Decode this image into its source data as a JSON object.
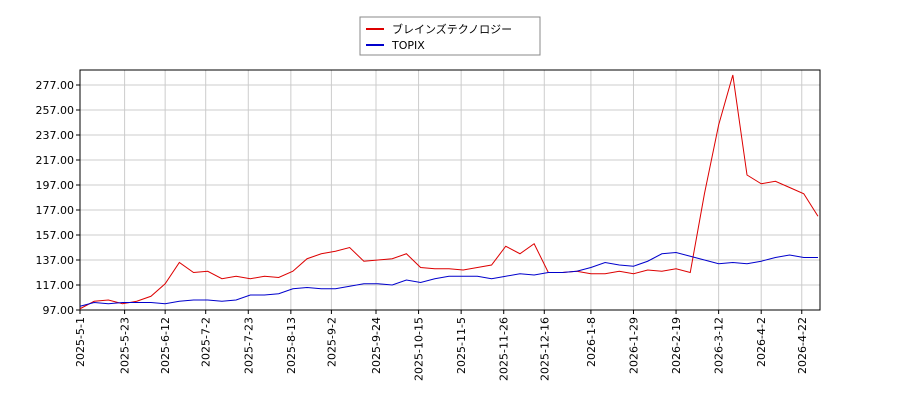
{
  "chart_data": {
    "type": "line",
    "x": [
      "2025-05-01",
      "2025-05-08",
      "2025-05-15",
      "2025-05-22",
      "2025-05-29",
      "2025-06-05",
      "2025-06-12",
      "2025-06-19",
      "2025-06-26",
      "2025-07-03",
      "2025-07-10",
      "2025-07-17",
      "2025-07-24",
      "2025-07-31",
      "2025-08-07",
      "2025-08-14",
      "2025-08-21",
      "2025-08-28",
      "2025-09-04",
      "2025-09-11",
      "2025-09-18",
      "2025-09-25",
      "2025-10-02",
      "2025-10-09",
      "2025-10-16",
      "2025-10-23",
      "2025-10-30",
      "2025-11-06",
      "2025-11-13",
      "2025-11-20",
      "2025-11-27",
      "2025-12-04",
      "2025-12-11",
      "2025-12-18",
      "2025-12-25",
      "2026-01-01",
      "2026-01-08",
      "2026-01-15",
      "2026-01-22",
      "2026-01-29",
      "2026-02-05",
      "2026-02-12",
      "2026-02-19",
      "2026-02-26",
      "2026-03-05",
      "2026-03-12",
      "2026-03-19",
      "2026-03-26",
      "2026-04-02",
      "2026-04-09",
      "2026-04-16",
      "2026-04-23",
      "2026-04-30"
    ],
    "series": [
      {
        "name": "ブレインズテクノロジー",
        "color": "#dd0000",
        "values": [
          98,
          104,
          105,
          102,
          104,
          108,
          118,
          135,
          127,
          128,
          122,
          124,
          122,
          124,
          123,
          128,
          138,
          142,
          144,
          147,
          136,
          137,
          138,
          142,
          131,
          130,
          130,
          129,
          131,
          133,
          148,
          142,
          150,
          127,
          127,
          128,
          126,
          126,
          128,
          126,
          129,
          128,
          130,
          127,
          190,
          245,
          285,
          205,
          198,
          200,
          195,
          190,
          172
        ]
      },
      {
        "name": "TOPIX",
        "color": "#0000cc",
        "values": [
          100,
          103,
          102,
          103,
          103,
          103,
          102,
          104,
          105,
          105,
          104,
          105,
          109,
          109,
          110,
          114,
          115,
          114,
          114,
          116,
          118,
          118,
          117,
          121,
          119,
          122,
          124,
          124,
          124,
          122,
          124,
          126,
          125,
          127,
          127,
          128,
          131,
          135,
          133,
          132,
          136,
          142,
          143,
          140,
          137,
          134,
          135,
          134,
          136,
          139,
          141,
          139,
          139
        ]
      }
    ],
    "xlim": [
      "2025-05-01",
      "2026-05-01"
    ],
    "xticks": [
      {
        "value": "2025-05-01",
        "label": "2025-5-1"
      },
      {
        "value": "2025-05-23",
        "label": "2025-5-23"
      },
      {
        "value": "2025-06-12",
        "label": "2025-6-12"
      },
      {
        "value": "2025-07-02",
        "label": "2025-7-2"
      },
      {
        "value": "2025-07-23",
        "label": "2025-7-23"
      },
      {
        "value": "2025-08-13",
        "label": "2025-8-13"
      },
      {
        "value": "2025-09-02",
        "label": "2025-9-2"
      },
      {
        "value": "2025-09-24",
        "label": "2025-9-24"
      },
      {
        "value": "2025-10-15",
        "label": "2025-10-15"
      },
      {
        "value": "2025-11-05",
        "label": "2025-11-5"
      },
      {
        "value": "2025-11-26",
        "label": "2025-11-26"
      },
      {
        "value": "2025-12-16",
        "label": "2025-12-16"
      },
      {
        "value": "2026-01-08",
        "label": "2026-1-8"
      },
      {
        "value": "2026-01-29",
        "label": "2026-1-29"
      },
      {
        "value": "2026-02-19",
        "label": "2026-2-19"
      },
      {
        "value": "2026-03-12",
        "label": "2026-3-12"
      },
      {
        "value": "2026-04-02",
        "label": "2026-4-2"
      },
      {
        "value": "2026-04-22",
        "label": "2026-4-22"
      }
    ],
    "ylim": [
      97,
      289
    ],
    "yticks": [
      {
        "value": 97,
        "label": "97.00"
      },
      {
        "value": 117,
        "label": "117.00"
      },
      {
        "value": 137,
        "label": "137.00"
      },
      {
        "value": 157,
        "label": "157.00"
      },
      {
        "value": 177,
        "label": "177.00"
      },
      {
        "value": 197,
        "label": "197.00"
      },
      {
        "value": 217,
        "label": "217.00"
      },
      {
        "value": 237,
        "label": "237.00"
      },
      {
        "value": 257,
        "label": "257.00"
      },
      {
        "value": 277,
        "label": "277.00"
      }
    ],
    "grid": true,
    "legend": "top"
  }
}
